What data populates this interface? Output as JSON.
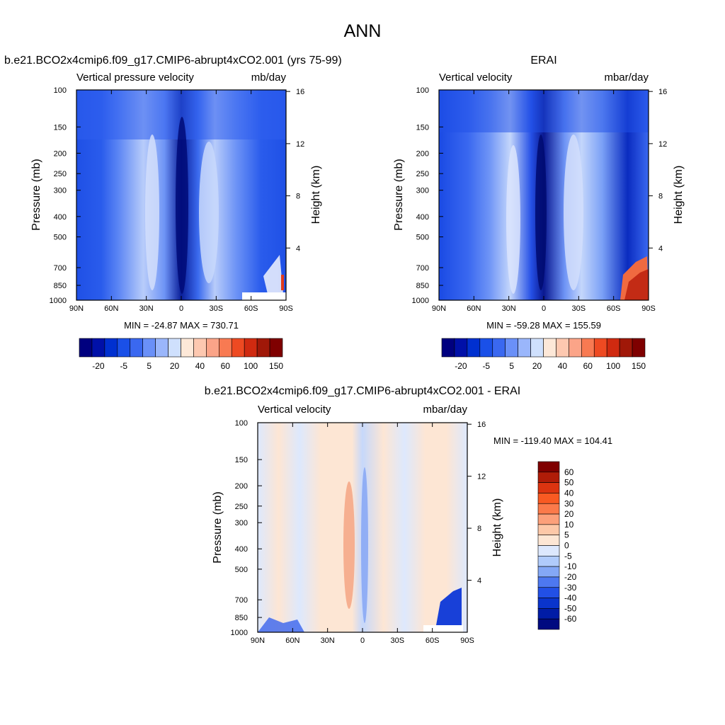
{
  "main_title": "ANN",
  "chart_data": [
    {
      "type": "heatmap",
      "title": "b.e21.BCO2x4cmip6.f09_g17.CMIP6-abrupt4xCO2.001 (yrs 75-99)",
      "left_subtitle": "Vertical pressure velocity",
      "right_subtitle": "mb/day",
      "ylabel": "Pressure (mb)",
      "ylabel_right": "Height (km)",
      "x_ticks": [
        "90N",
        "60N",
        "30N",
        "0",
        "30S",
        "60S",
        "90S"
      ],
      "y_ticks": [
        "100",
        "150",
        "200",
        "250",
        "300",
        "400",
        "500",
        "700",
        "850",
        "1000"
      ],
      "height_ticks": [
        "16",
        "12",
        "8",
        "4"
      ],
      "stats": "MIN = -24.87  MAX = 730.71",
      "colorbar_labels": [
        "-20",
        "-5",
        "5",
        "20",
        "40",
        "60",
        "100",
        "150"
      ],
      "colorbar_colors": [
        "#00007f",
        "#0010a8",
        "#0030d0",
        "#1a50e8",
        "#3a68f0",
        "#6a90f8",
        "#9ab6fb",
        "#cfe0fd",
        "#fde8d8",
        "#fdc8b0",
        "#fba488",
        "#f87a52",
        "#ee4a22",
        "#d02a10",
        "#a01808",
        "#7f0000"
      ],
      "ylim": [
        1000,
        100
      ],
      "xlim": [
        "90N",
        "90S"
      ]
    },
    {
      "type": "heatmap",
      "title": "ERAI",
      "left_subtitle": "Vertical velocity",
      "right_subtitle": "mbar/day",
      "ylabel": "Pressure (mb)",
      "ylabel_right": "Height (km)",
      "x_ticks": [
        "90N",
        "60N",
        "30N",
        "0",
        "30S",
        "60S",
        "90S"
      ],
      "y_ticks": [
        "100",
        "150",
        "200",
        "250",
        "300",
        "400",
        "500",
        "700",
        "850",
        "1000"
      ],
      "height_ticks": [
        "16",
        "12",
        "8",
        "4"
      ],
      "stats": "MIN = -59.28  MAX = 155.59",
      "colorbar_labels": [
        "-20",
        "-5",
        "5",
        "20",
        "40",
        "60",
        "100",
        "150"
      ],
      "colorbar_colors": [
        "#00007f",
        "#0010a8",
        "#0030d0",
        "#1a50e8",
        "#3a68f0",
        "#6a90f8",
        "#9ab6fb",
        "#cfe0fd",
        "#fde8d8",
        "#fdc8b0",
        "#fba488",
        "#f87a52",
        "#ee4a22",
        "#d02a10",
        "#a01808",
        "#7f0000"
      ],
      "ylim": [
        1000,
        100
      ],
      "xlim": [
        "90N",
        "90S"
      ]
    },
    {
      "type": "heatmap",
      "title": "b.e21.BCO2x4cmip6.f09_g17.CMIP6-abrupt4xCO2.001 - ERAI",
      "left_subtitle": "Vertical velocity",
      "right_subtitle": "mbar/day",
      "ylabel": "Pressure (mb)",
      "ylabel_right": "Height (km)",
      "x_ticks": [
        "90N",
        "60N",
        "30N",
        "0",
        "30S",
        "60S",
        "90S"
      ],
      "y_ticks": [
        "100",
        "150",
        "200",
        "250",
        "300",
        "400",
        "500",
        "700",
        "850",
        "1000"
      ],
      "height_ticks": [
        "16",
        "12",
        "8",
        "4"
      ],
      "stats": "MIN = -119.40  MAX = 104.41",
      "colorbar_labels": [
        "60",
        "50",
        "40",
        "30",
        "20",
        "10",
        "5",
        "0",
        "-5",
        "-10",
        "-20",
        "-30",
        "-40",
        "-50",
        "-60"
      ],
      "colorbar_colors": [
        "#7f0000",
        "#b01c08",
        "#dc3410",
        "#f85a22",
        "#fb7a4a",
        "#fca07a",
        "#fdc8a8",
        "#fde6d4",
        "#dde8fd",
        "#b0cbfb",
        "#84a8f6",
        "#4d78f0",
        "#2250e6",
        "#0a34cc",
        "#001ca6",
        "#000a80"
      ],
      "ylim": [
        1000,
        100
      ],
      "xlim": [
        "90N",
        "90S"
      ]
    }
  ]
}
